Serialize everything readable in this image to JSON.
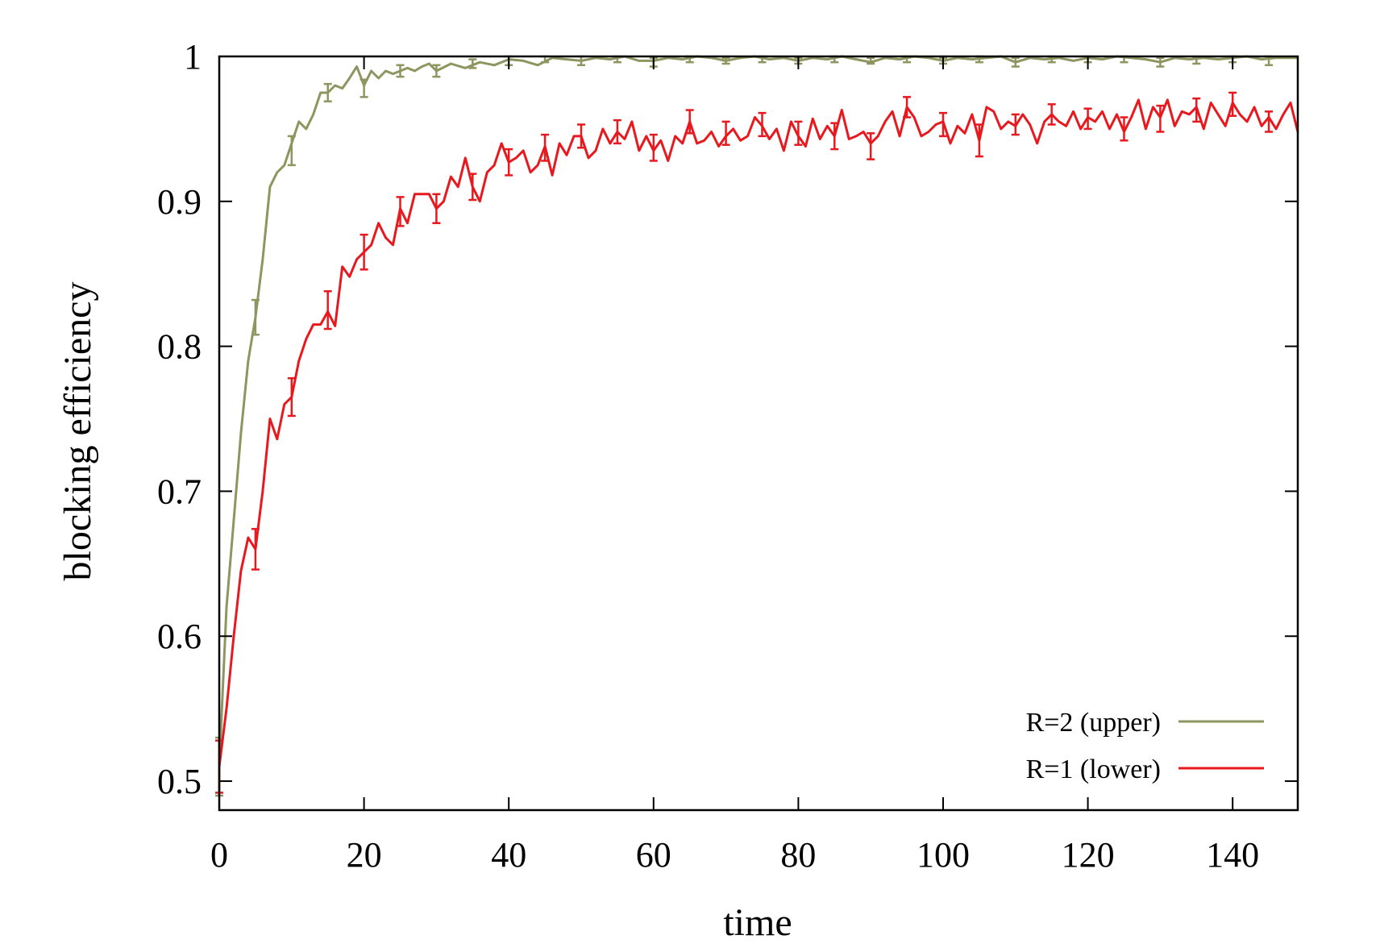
{
  "chart_data": {
    "type": "line",
    "title": "",
    "xlabel": "time",
    "ylabel": "blocking efficiency",
    "xlim": [
      0,
      149
    ],
    "ylim": [
      0.48,
      1.0
    ],
    "x_ticks": [
      0,
      20,
      40,
      60,
      80,
      100,
      120,
      140
    ],
    "x_tick_labels": [
      "0",
      "20",
      "40",
      "60",
      "80",
      "100",
      "120",
      "140"
    ],
    "y_ticks": [
      0.5,
      0.6,
      0.7,
      0.8,
      0.9,
      1.0
    ],
    "y_tick_labels": [
      "0.5",
      "0.6",
      "0.7",
      "0.8",
      "0.9",
      "1"
    ],
    "grid": false,
    "legend_position": "bottom-right",
    "series": [
      {
        "name": "R=2 (upper)",
        "color": "#8e955f",
        "x": [
          0,
          1,
          2,
          3,
          4,
          5,
          6,
          7,
          8,
          9,
          10,
          11,
          12,
          13,
          14,
          15,
          16,
          17,
          18,
          19,
          20,
          21,
          22,
          23,
          24,
          25,
          26,
          27,
          28,
          29,
          30,
          32,
          34,
          36,
          38,
          40,
          42,
          44,
          46,
          48,
          50,
          52,
          54,
          56,
          58,
          60,
          62,
          64,
          66,
          68,
          70,
          72,
          74,
          76,
          78,
          80,
          82,
          84,
          86,
          88,
          90,
          92,
          94,
          96,
          98,
          100,
          102,
          104,
          106,
          108,
          110,
          112,
          114,
          116,
          118,
          120,
          122,
          124,
          126,
          128,
          130,
          132,
          134,
          136,
          138,
          140,
          142,
          144,
          146,
          148,
          149
        ],
        "y": [
          0.51,
          0.62,
          0.68,
          0.74,
          0.79,
          0.82,
          0.86,
          0.91,
          0.92,
          0.925,
          0.94,
          0.955,
          0.95,
          0.96,
          0.975,
          0.975,
          0.98,
          0.978,
          0.985,
          0.993,
          0.98,
          0.99,
          0.985,
          0.99,
          0.988,
          0.99,
          0.992,
          0.99,
          0.993,
          0.995,
          0.99,
          0.995,
          0.992,
          0.996,
          0.994,
          0.998,
          0.997,
          0.994,
          0.999,
          0.998,
          0.997,
          0.999,
          0.998,
          1.0,
          0.997,
          0.997,
          0.999,
          0.998,
          1.0,
          0.999,
          0.997,
          0.999,
          1.0,
          0.998,
          0.999,
          0.997,
          0.999,
          0.998,
          1.0,
          0.998,
          0.996,
          0.999,
          0.998,
          1.0,
          0.999,
          0.997,
          0.999,
          0.998,
          0.999,
          1.0,
          0.996,
          0.999,
          0.998,
          0.999,
          0.997,
          0.999,
          0.998,
          1.0,
          0.999,
          0.998,
          0.996,
          0.999,
          0.998,
          0.999,
          0.998,
          0.999,
          1.0,
          0.998,
          0.999,
          0.999,
          0.999
        ],
        "error_bars": [
          {
            "x": 0,
            "y": 0.51,
            "err": 0.02
          },
          {
            "x": 5,
            "y": 0.82,
            "err": 0.012
          },
          {
            "x": 10,
            "y": 0.935,
            "err": 0.01
          },
          {
            "x": 15,
            "y": 0.975,
            "err": 0.006
          },
          {
            "x": 20,
            "y": 0.978,
            "err": 0.006
          },
          {
            "x": 25,
            "y": 0.99,
            "err": 0.004
          },
          {
            "x": 30,
            "y": 0.99,
            "err": 0.004
          },
          {
            "x": 35,
            "y": 0.995,
            "err": 0.003
          },
          {
            "x": 40,
            "y": 0.997,
            "err": 0.003
          },
          {
            "x": 45,
            "y": 0.998,
            "err": 0.002
          },
          {
            "x": 50,
            "y": 0.997,
            "err": 0.003
          },
          {
            "x": 55,
            "y": 0.998,
            "err": 0.002
          },
          {
            "x": 60,
            "y": 0.996,
            "err": 0.003
          },
          {
            "x": 65,
            "y": 0.998,
            "err": 0.002
          },
          {
            "x": 70,
            "y": 0.997,
            "err": 0.002
          },
          {
            "x": 75,
            "y": 0.998,
            "err": 0.002
          },
          {
            "x": 80,
            "y": 0.997,
            "err": 0.002
          },
          {
            "x": 85,
            "y": 0.998,
            "err": 0.002
          },
          {
            "x": 90,
            "y": 0.997,
            "err": 0.002
          },
          {
            "x": 95,
            "y": 0.998,
            "err": 0.002
          },
          {
            "x": 100,
            "y": 0.997,
            "err": 0.002
          },
          {
            "x": 105,
            "y": 0.998,
            "err": 0.002
          },
          {
            "x": 110,
            "y": 0.996,
            "err": 0.003
          },
          {
            "x": 115,
            "y": 0.998,
            "err": 0.002
          },
          {
            "x": 120,
            "y": 0.998,
            "err": 0.002
          },
          {
            "x": 125,
            "y": 0.998,
            "err": 0.002
          },
          {
            "x": 130,
            "y": 0.996,
            "err": 0.003
          },
          {
            "x": 135,
            "y": 0.997,
            "err": 0.002
          },
          {
            "x": 140,
            "y": 0.998,
            "err": 0.002
          },
          {
            "x": 145,
            "y": 0.997,
            "err": 0.003
          }
        ]
      },
      {
        "name": "R=1 (lower)",
        "color": "#e8191e",
        "x": [
          0,
          1,
          2,
          3,
          4,
          5,
          6,
          7,
          8,
          9,
          10,
          11,
          12,
          13,
          14,
          15,
          16,
          17,
          18,
          19,
          20,
          21,
          22,
          23,
          24,
          25,
          26,
          27,
          28,
          29,
          30,
          31,
          32,
          33,
          34,
          35,
          36,
          37,
          38,
          39,
          40,
          41,
          42,
          43,
          44,
          45,
          46,
          47,
          48,
          49,
          50,
          51,
          52,
          53,
          54,
          55,
          56,
          57,
          58,
          59,
          60,
          61,
          62,
          63,
          64,
          65,
          66,
          67,
          68,
          69,
          70,
          71,
          72,
          73,
          74,
          75,
          76,
          77,
          78,
          79,
          80,
          81,
          82,
          83,
          84,
          85,
          86,
          87,
          88,
          89,
          90,
          91,
          92,
          93,
          94,
          95,
          96,
          97,
          98,
          99,
          100,
          101,
          102,
          103,
          104,
          105,
          106,
          107,
          108,
          109,
          110,
          111,
          112,
          113,
          114,
          115,
          116,
          117,
          118,
          119,
          120,
          121,
          122,
          123,
          124,
          125,
          126,
          127,
          128,
          129,
          130,
          131,
          132,
          133,
          134,
          135,
          136,
          137,
          138,
          139,
          140,
          141,
          142,
          143,
          144,
          145,
          146,
          147,
          148,
          149
        ],
        "y": [
          0.51,
          0.55,
          0.6,
          0.645,
          0.668,
          0.66,
          0.7,
          0.75,
          0.736,
          0.76,
          0.765,
          0.79,
          0.805,
          0.815,
          0.815,
          0.824,
          0.814,
          0.855,
          0.848,
          0.86,
          0.865,
          0.87,
          0.885,
          0.875,
          0.87,
          0.895,
          0.885,
          0.905,
          0.905,
          0.905,
          0.895,
          0.9,
          0.917,
          0.91,
          0.93,
          0.91,
          0.9,
          0.92,
          0.925,
          0.94,
          0.927,
          0.93,
          0.935,
          0.92,
          0.925,
          0.938,
          0.918,
          0.94,
          0.932,
          0.945,
          0.945,
          0.93,
          0.935,
          0.95,
          0.94,
          0.948,
          0.943,
          0.955,
          0.935,
          0.945,
          0.935,
          0.942,
          0.928,
          0.945,
          0.94,
          0.955,
          0.94,
          0.942,
          0.948,
          0.938,
          0.945,
          0.95,
          0.942,
          0.945,
          0.958,
          0.952,
          0.943,
          0.95,
          0.935,
          0.955,
          0.945,
          0.938,
          0.957,
          0.943,
          0.952,
          0.945,
          0.963,
          0.943,
          0.945,
          0.948,
          0.94,
          0.945,
          0.955,
          0.962,
          0.945,
          0.965,
          0.958,
          0.945,
          0.948,
          0.953,
          0.955,
          0.94,
          0.952,
          0.947,
          0.96,
          0.942,
          0.965,
          0.962,
          0.95,
          0.955,
          0.952,
          0.96,
          0.953,
          0.94,
          0.955,
          0.96,
          0.955,
          0.952,
          0.962,
          0.95,
          0.958,
          0.955,
          0.962,
          0.95,
          0.96,
          0.948,
          0.958,
          0.97,
          0.95,
          0.965,
          0.958,
          0.97,
          0.952,
          0.962,
          0.96,
          0.965,
          0.95,
          0.968,
          0.96,
          0.952,
          0.968,
          0.96,
          0.955,
          0.965,
          0.952,
          0.958,
          0.95,
          0.96,
          0.968,
          0.948
        ],
        "error_bars": [
          {
            "x": 0,
            "y": 0.51,
            "err": 0.018
          },
          {
            "x": 5,
            "y": 0.66,
            "err": 0.014
          },
          {
            "x": 10,
            "y": 0.765,
            "err": 0.013
          },
          {
            "x": 15,
            "y": 0.825,
            "err": 0.013
          },
          {
            "x": 20,
            "y": 0.865,
            "err": 0.012
          },
          {
            "x": 25,
            "y": 0.893,
            "err": 0.01
          },
          {
            "x": 30,
            "y": 0.895,
            "err": 0.01
          },
          {
            "x": 35,
            "y": 0.91,
            "err": 0.009
          },
          {
            "x": 40,
            "y": 0.927,
            "err": 0.009
          },
          {
            "x": 45,
            "y": 0.937,
            "err": 0.009
          },
          {
            "x": 50,
            "y": 0.945,
            "err": 0.008
          },
          {
            "x": 55,
            "y": 0.948,
            "err": 0.008
          },
          {
            "x": 60,
            "y": 0.937,
            "err": 0.009
          },
          {
            "x": 65,
            "y": 0.955,
            "err": 0.008
          },
          {
            "x": 70,
            "y": 0.947,
            "err": 0.008
          },
          {
            "x": 75,
            "y": 0.953,
            "err": 0.008
          },
          {
            "x": 80,
            "y": 0.947,
            "err": 0.008
          },
          {
            "x": 85,
            "y": 0.945,
            "err": 0.009
          },
          {
            "x": 90,
            "y": 0.938,
            "err": 0.009
          },
          {
            "x": 95,
            "y": 0.965,
            "err": 0.007
          },
          {
            "x": 100,
            "y": 0.953,
            "err": 0.008
          },
          {
            "x": 105,
            "y": 0.942,
            "err": 0.011
          },
          {
            "x": 110,
            "y": 0.953,
            "err": 0.007
          },
          {
            "x": 115,
            "y": 0.96,
            "err": 0.007
          },
          {
            "x": 120,
            "y": 0.957,
            "err": 0.007
          },
          {
            "x": 125,
            "y": 0.95,
            "err": 0.008
          },
          {
            "x": 130,
            "y": 0.957,
            "err": 0.009
          },
          {
            "x": 135,
            "y": 0.963,
            "err": 0.008
          },
          {
            "x": 140,
            "y": 0.967,
            "err": 0.008
          },
          {
            "x": 145,
            "y": 0.955,
            "err": 0.007
          }
        ]
      }
    ]
  }
}
